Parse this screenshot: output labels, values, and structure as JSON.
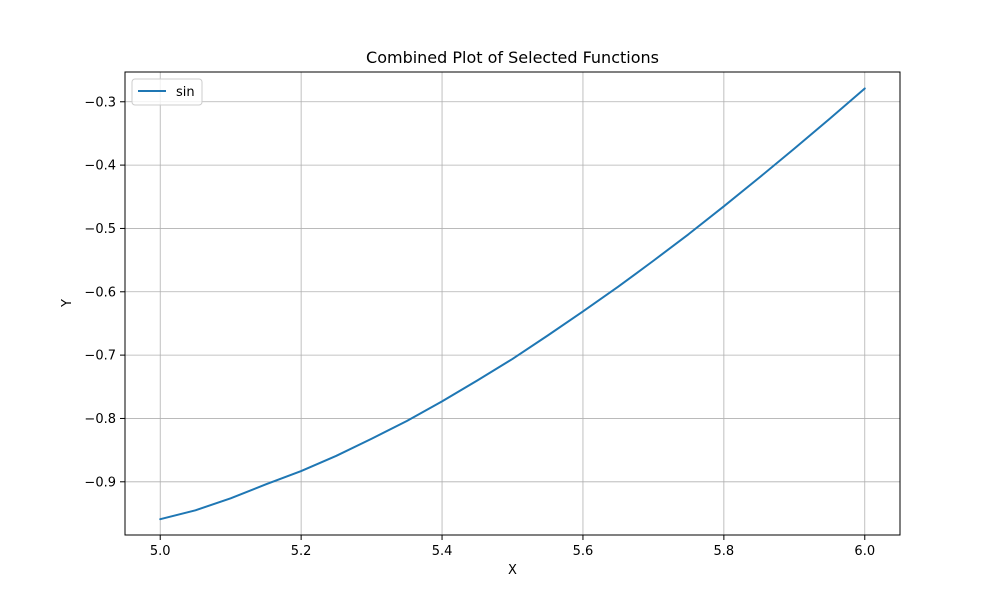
{
  "chart_data": {
    "type": "line",
    "title": "Combined Plot of Selected Functions",
    "xlabel": "X",
    "ylabel": "Y",
    "xlim": [
      4.95,
      6.05
    ],
    "ylim": [
      -0.984,
      -0.253
    ],
    "xticks": [
      5.0,
      5.2,
      5.4,
      5.6,
      5.8,
      6.0
    ],
    "xtick_labels": [
      "5.0",
      "5.2",
      "5.4",
      "5.6",
      "5.8",
      "6.0"
    ],
    "yticks": [
      -0.9,
      -0.8,
      -0.7,
      -0.6,
      -0.5,
      -0.4,
      -0.3
    ],
    "ytick_labels": [
      "−0.9",
      "−0.8",
      "−0.7",
      "−0.6",
      "−0.5",
      "−0.4",
      "−0.3"
    ],
    "grid": true,
    "legend_position": "top-left",
    "series": [
      {
        "name": "sin",
        "color": "#1f77b4",
        "x": [
          5.0,
          5.05,
          5.1,
          5.15,
          5.2,
          5.25,
          5.3,
          5.35,
          5.4,
          5.45,
          5.5,
          5.55,
          5.6,
          5.65,
          5.7,
          5.75,
          5.8,
          5.85,
          5.9,
          5.95,
          6.0
        ],
        "y": [
          -0.959,
          -0.945,
          -0.926,
          -0.904,
          -0.883,
          -0.859,
          -0.832,
          -0.804,
          -0.773,
          -0.74,
          -0.706,
          -0.669,
          -0.631,
          -0.592,
          -0.551,
          -0.509,
          -0.465,
          -0.42,
          -0.374,
          -0.327,
          -0.279
        ]
      }
    ]
  }
}
